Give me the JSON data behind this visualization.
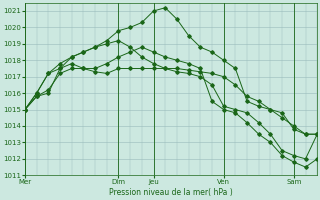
{
  "background_color": "#cce8e0",
  "grid_color": "#99bbbb",
  "line_color": "#1a6618",
  "xlabel": "Pression niveau de la mer( hPa )",
  "ylim": [
    1011,
    1021.5
  ],
  "yticks": [
    1011,
    1012,
    1013,
    1014,
    1015,
    1016,
    1017,
    1018,
    1019,
    1020,
    1021
  ],
  "day_labels": [
    "Mer",
    "Dim",
    "Jeu",
    "Ven",
    "Sam"
  ],
  "day_positions": [
    0,
    8,
    11,
    17,
    23
  ],
  "xlim": [
    0,
    25
  ],
  "series": [
    {
      "x": [
        0,
        1,
        2,
        3,
        4,
        5,
        6,
        7,
        8,
        9,
        10,
        11,
        12,
        13,
        14,
        15,
        16,
        17,
        18,
        19,
        20,
        21,
        22,
        23,
        24,
        25
      ],
      "y": [
        1015.0,
        1015.8,
        1016.0,
        1017.5,
        1018.2,
        1018.5,
        1018.8,
        1019.2,
        1019.8,
        1020.0,
        1020.3,
        1021.0,
        1021.2,
        1020.5,
        1019.5,
        1018.8,
        1018.5,
        1018.0,
        1017.5,
        1015.5,
        1015.2,
        1015.0,
        1014.8,
        1013.8,
        1013.5,
        1013.5
      ]
    },
    {
      "x": [
        0,
        1,
        2,
        3,
        4,
        5,
        6,
        7,
        8,
        9,
        10,
        11,
        12,
        13,
        14,
        15,
        16,
        17,
        18,
        19,
        20,
        21,
        22,
        23,
        24,
        25
      ],
      "y": [
        1015.0,
        1016.0,
        1017.2,
        1017.5,
        1017.8,
        1017.5,
        1017.3,
        1017.2,
        1017.5,
        1017.5,
        1017.5,
        1017.5,
        1017.5,
        1017.5,
        1017.4,
        1017.3,
        1017.2,
        1017.0,
        1016.5,
        1015.8,
        1015.5,
        1015.0,
        1014.5,
        1014.0,
        1013.5,
        1013.5
      ]
    },
    {
      "x": [
        0,
        1,
        2,
        3,
        4,
        5,
        6,
        7,
        8,
        9,
        10,
        11,
        12,
        13,
        14,
        15,
        16,
        17,
        18,
        19,
        20,
        21,
        22,
        23,
        24,
        25
      ],
      "y": [
        1015.0,
        1015.8,
        1016.2,
        1017.2,
        1017.5,
        1017.5,
        1017.5,
        1017.8,
        1018.2,
        1018.5,
        1018.8,
        1018.5,
        1018.2,
        1018.0,
        1017.8,
        1017.5,
        1015.5,
        1015.0,
        1014.8,
        1014.2,
        1013.5,
        1013.0,
        1012.2,
        1011.8,
        1011.5,
        1012.0
      ]
    },
    {
      "x": [
        0,
        1,
        2,
        3,
        4,
        5,
        6,
        7,
        8,
        9,
        10,
        11,
        12,
        13,
        14,
        15,
        16,
        17,
        18,
        19,
        20,
        21,
        22,
        23,
        24,
        25
      ],
      "y": [
        1015.0,
        1016.0,
        1017.2,
        1017.8,
        1018.2,
        1018.5,
        1018.8,
        1019.0,
        1019.2,
        1018.8,
        1018.2,
        1017.8,
        1017.5,
        1017.3,
        1017.2,
        1017.0,
        1016.5,
        1015.2,
        1015.0,
        1014.8,
        1014.2,
        1013.5,
        1012.5,
        1012.2,
        1012.0,
        1013.5
      ]
    }
  ]
}
